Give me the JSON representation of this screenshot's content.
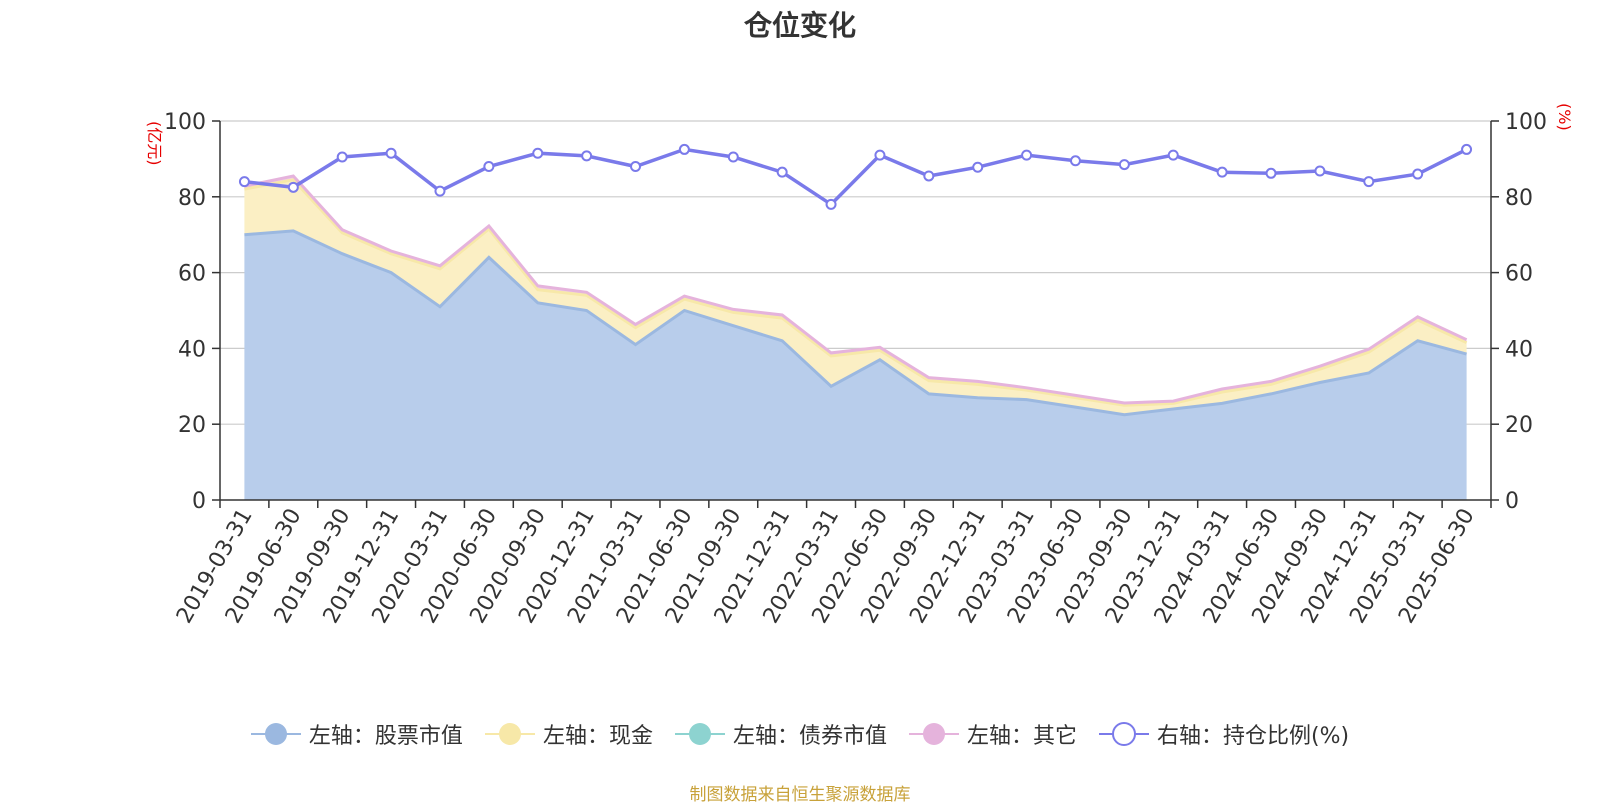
{
  "chart_data": {
    "type": "area",
    "title": "仓位变化",
    "y_left_unit": "(亿元)",
    "y_right_unit": "(%)",
    "ylim_left": [
      0,
      100
    ],
    "ylim_right": [
      0,
      100
    ],
    "y_ticks_left": [
      0,
      20,
      40,
      60,
      80,
      100
    ],
    "y_ticks_right": [
      0,
      20,
      40,
      60,
      80,
      100
    ],
    "grid": true,
    "legend_placement": "bottom-center",
    "x": [
      "2019-03-31",
      "2019-06-30",
      "2019-09-30",
      "2019-12-31",
      "2020-03-31",
      "2020-06-30",
      "2020-09-30",
      "2020-12-31",
      "2021-03-31",
      "2021-06-30",
      "2021-09-30",
      "2021-12-31",
      "2022-03-31",
      "2022-06-30",
      "2022-09-30",
      "2022-12-31",
      "2023-03-31",
      "2023-06-30",
      "2023-09-30",
      "2023-12-31",
      "2024-03-31",
      "2024-06-30",
      "2024-09-30",
      "2024-12-31",
      "2025-03-31",
      "2025-06-30"
    ],
    "series": [
      {
        "name": "左轴：股票市值",
        "axis": "left",
        "stack": true,
        "color": "#9bb8e0",
        "fill": "#b8cdeb",
        "values": [
          70,
          71,
          65,
          60,
          51,
          64,
          52,
          50,
          41,
          50,
          46,
          42,
          30,
          37,
          28,
          27,
          26.5,
          24.5,
          22.5,
          24,
          25.5,
          28,
          31,
          33.5,
          42,
          38.5
        ]
      },
      {
        "name": "左轴：现金",
        "axis": "left",
        "stack": true,
        "color": "#f7e8a8",
        "fill": "#fbefc4",
        "values": [
          12,
          13.5,
          5.5,
          5,
          10,
          7.5,
          3.5,
          4,
          4.5,
          3,
          3.5,
          6,
          8,
          2.5,
          3.5,
          3.5,
          2.5,
          2.5,
          2.5,
          1.5,
          3,
          2.5,
          3.5,
          5.5,
          5.5,
          3
        ]
      },
      {
        "name": "左轴：债券市值",
        "axis": "left",
        "stack": true,
        "color": "#8dd3d0",
        "fill": "#bfe6e4",
        "values": [
          0,
          0,
          0,
          0,
          0,
          0,
          0,
          0,
          0,
          0,
          0,
          0,
          0,
          0,
          0,
          0,
          0,
          0,
          0,
          0,
          0,
          0,
          0,
          0,
          0,
          0
        ]
      },
      {
        "name": "左轴：其它",
        "axis": "left",
        "stack": true,
        "color": "#e5b3dc",
        "fill": "#f0cfe9",
        "values": [
          0.8,
          1,
          0.8,
          0.7,
          0.8,
          0.8,
          1,
          0.8,
          0.8,
          0.8,
          0.8,
          0.8,
          0.8,
          0.8,
          0.8,
          0.8,
          0.6,
          0.6,
          0.6,
          0.6,
          0.8,
          0.8,
          0.8,
          0.8,
          0.8,
          0.8
        ]
      },
      {
        "name": "右轴：持仓比例(%)",
        "axis": "right",
        "stack": false,
        "color": "#7a7aea",
        "values": [
          84,
          82.5,
          90.5,
          91.5,
          81.5,
          88,
          91.5,
          90.8,
          88,
          92.5,
          90.5,
          86.5,
          78,
          91,
          85.5,
          87.8,
          91,
          89.5,
          88.5,
          91,
          86.5,
          86.2,
          86.8,
          84,
          86,
          92.5
        ]
      }
    ]
  },
  "source_note": "制图数据来自恒生聚源数据库"
}
